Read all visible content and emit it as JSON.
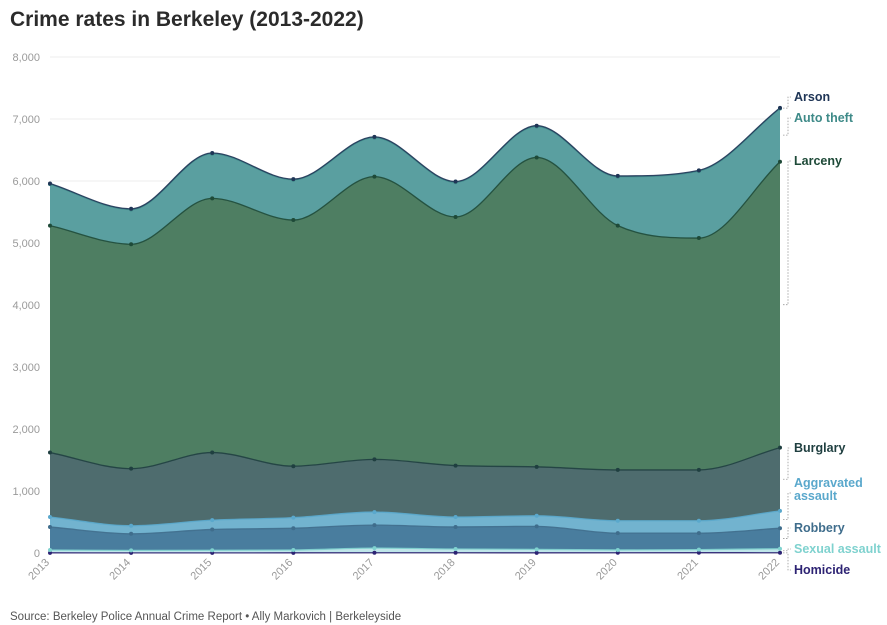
{
  "title": "Crime rates in Berkeley (2013-2022)",
  "source": "Source: Berkeley Police Annual Crime Report • Ally Markovich | Berkeleyside",
  "chart_data": {
    "type": "area",
    "stacked": true,
    "x": [
      "2013",
      "2014",
      "2015",
      "2016",
      "2017",
      "2018",
      "2019",
      "2020",
      "2021",
      "2022"
    ],
    "ylim": [
      0,
      8000
    ],
    "yticks": [
      0,
      1000,
      2000,
      3000,
      4000,
      5000,
      6000,
      7000,
      8000
    ],
    "ytick_labels": [
      "0",
      "1,000",
      "2,000",
      "3,000",
      "4,000",
      "5,000",
      "6,000",
      "7,000",
      "8,000"
    ],
    "grid": true,
    "legend": "direct labels at right end",
    "series": [
      {
        "name": "Homicide",
        "color": "#27216b",
        "labelColor": "#2d2373",
        "values": [
          3,
          2,
          2,
          3,
          4,
          4,
          3,
          4,
          5,
          4
        ]
      },
      {
        "name": "Sexual assault",
        "color": "#bfe6ea",
        "labelColor": "#7fd2cf",
        "values": [
          45,
          40,
          42,
          45,
          75,
          60,
          55,
          45,
          50,
          65
        ]
      },
      {
        "name": "Robbery",
        "color": "#497d9e",
        "labelColor": "#3f6d8c",
        "values": [
          372,
          268,
          336,
          352,
          371,
          356,
          372,
          271,
          265,
          331
        ]
      },
      {
        "name": "Aggravated assault",
        "color": "#72b3cf",
        "labelColor": "#5aa8cc",
        "values": [
          160,
          130,
          150,
          170,
          210,
          160,
          170,
          200,
          200,
          280
        ]
      },
      {
        "name": "Burglary",
        "color": "#4e6c6e",
        "labelColor": "#1f3f40",
        "values": [
          1040,
          920,
          1090,
          830,
          850,
          830,
          790,
          820,
          820,
          1020
        ]
      },
      {
        "name": "Larceny",
        "color": "#4e7e62",
        "labelColor": "#1e4a38",
        "values": [
          3660,
          3620,
          4100,
          3970,
          4560,
          4010,
          4990,
          3940,
          3740,
          4610
        ]
      },
      {
        "name": "Auto theft",
        "color": "#5a9fa0",
        "labelColor": "#3e8a88",
        "values": [
          670,
          560,
          720,
          650,
          630,
          560,
          500,
          790,
          1080,
          860
        ]
      },
      {
        "name": "Arson",
        "color": "#7aa7c5",
        "labelColor": "#1f3556",
        "values": [
          10,
          12,
          12,
          10,
          12,
          12,
          12,
          12,
          12,
          10
        ]
      }
    ]
  }
}
